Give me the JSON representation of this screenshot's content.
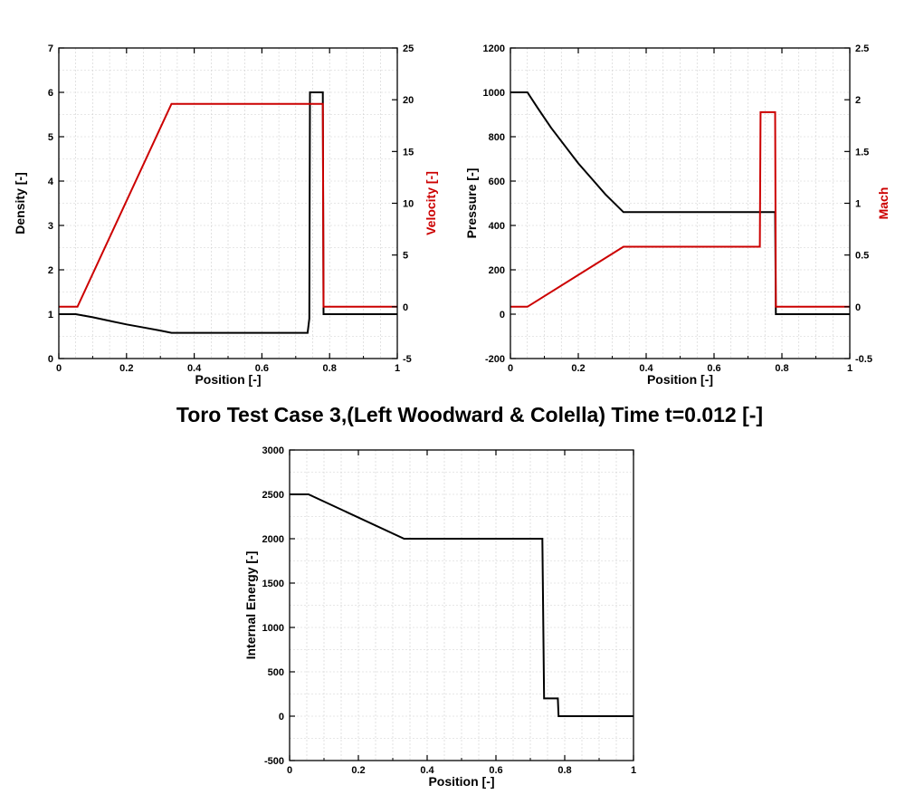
{
  "figure_title": "Toro Test Case 3,(Left Woodward & Colella) Time t=0.012 [-]",
  "colors": {
    "black": "#000000",
    "red": "#cc0000",
    "grid": "#cfcfcf"
  },
  "chart_data": [
    {
      "type": "line",
      "xlabel": "Position [-]",
      "ylabel": "Density [-]",
      "y2label": "Velocity [-]",
      "xlim": [
        0,
        1
      ],
      "ylim": [
        0,
        7
      ],
      "y2lim": [
        -5,
        25
      ],
      "xticks": [
        0,
        0.2,
        0.4,
        0.6,
        0.8,
        1
      ],
      "yticks": [
        0,
        1,
        2,
        3,
        4,
        5,
        6,
        7
      ],
      "y2ticks": [
        -5,
        0,
        5,
        10,
        15,
        20,
        25
      ],
      "grid": true,
      "series": [
        {
          "axis": "left",
          "color": "#000000",
          "x": [
            0,
            0.05,
            0.1,
            0.15,
            0.2,
            0.25,
            0.3,
            0.333,
            0.735,
            0.74,
            0.742,
            0.78,
            0.782,
            1
          ],
          "y": [
            1,
            1,
            0.93,
            0.85,
            0.77,
            0.7,
            0.63,
            0.58,
            0.58,
            0.9,
            6.0,
            6.0,
            1,
            1
          ]
        },
        {
          "axis": "right",
          "color": "#cc0000",
          "x": [
            0,
            0.055,
            0.333,
            0.78,
            0.782,
            1
          ],
          "y": [
            0,
            0,
            19.6,
            19.6,
            0,
            0
          ]
        }
      ]
    },
    {
      "type": "line",
      "xlabel": "Position [-]",
      "ylabel": "Pressure [-]",
      "y2label": "Mach",
      "xlim": [
        0,
        1
      ],
      "ylim": [
        -200,
        1200
      ],
      "y2lim": [
        -0.5,
        2.5
      ],
      "xticks": [
        0,
        0.2,
        0.4,
        0.6,
        0.8,
        1
      ],
      "yticks": [
        -200,
        0,
        200,
        400,
        600,
        800,
        1000,
        1200
      ],
      "y2ticks": [
        -0.5,
        0,
        0.5,
        1,
        1.5,
        2,
        2.5
      ],
      "grid": true,
      "series": [
        {
          "axis": "left",
          "color": "#000000",
          "x": [
            0,
            0.05,
            0.08,
            0.12,
            0.16,
            0.2,
            0.24,
            0.28,
            0.333,
            0.78,
            0.782,
            1
          ],
          "y": [
            1000,
            1000,
            930,
            840,
            760,
            680,
            610,
            540,
            460,
            460,
            0,
            0
          ]
        },
        {
          "axis": "right",
          "color": "#cc0000",
          "x": [
            0,
            0.05,
            0.333,
            0.735,
            0.737,
            0.78,
            0.782,
            1
          ],
          "y": [
            0,
            0,
            0.58,
            0.58,
            1.88,
            1.88,
            0,
            0
          ]
        }
      ]
    },
    {
      "type": "line",
      "xlabel": "Position [-]",
      "ylabel": "Internal Energy [-]",
      "xlim": [
        0,
        1
      ],
      "ylim": [
        -500,
        3000
      ],
      "xticks": [
        0,
        0.2,
        0.4,
        0.6,
        0.8,
        1
      ],
      "yticks": [
        -500,
        0,
        500,
        1000,
        1500,
        2000,
        2500,
        3000
      ],
      "grid": true,
      "series": [
        {
          "axis": "left",
          "color": "#000000",
          "x": [
            0,
            0.055,
            0.333,
            0.735,
            0.74,
            0.78,
            0.782,
            1
          ],
          "y": [
            2500,
            2500,
            2000,
            2000,
            200,
            200,
            0,
            0
          ]
        }
      ]
    }
  ]
}
